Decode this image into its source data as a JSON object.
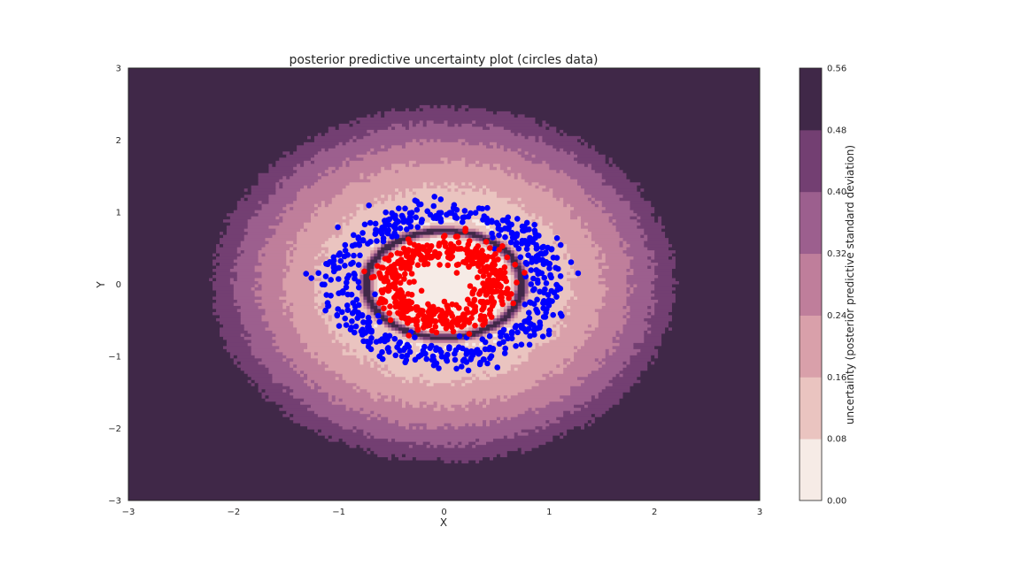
{
  "chart_data": {
    "type": "contour_scatter",
    "title": "posterior predictive uncertainty plot (circles data)",
    "xlabel": "X",
    "ylabel": "Y",
    "xlim": [
      -3,
      3
    ],
    "ylim": [
      -3,
      3
    ],
    "x_ticks": [
      "−3",
      "−2",
      "−1",
      "0",
      "1",
      "2",
      "3"
    ],
    "y_ticks": [
      "−3",
      "−2",
      "−1",
      "0",
      "1",
      "2",
      "3"
    ],
    "grid": false,
    "colorbar": {
      "label": "uncertainty (posterior predictive standard deviation)",
      "levels": [
        0.0,
        0.08,
        0.16,
        0.24,
        0.32,
        0.4,
        0.48,
        0.56
      ],
      "tick_labels": [
        "0.00",
        "0.08",
        "0.16",
        "0.24",
        "0.32",
        "0.40",
        "0.48",
        "0.56"
      ],
      "colors": [
        "#f6ebe6",
        "#eac4c0",
        "#d9a0aa",
        "#bf7e9b",
        "#9c5f8e",
        "#733f72",
        "#402848"
      ]
    },
    "series": [
      {
        "color": "#0000ff",
        "shape": "ring",
        "radius": 1.0,
        "radius_spread": 0.1,
        "approx_count": 500
      },
      {
        "color": "#ff0000",
        "shape": "ring",
        "radius": 0.5,
        "radius_spread": 0.1,
        "approx_count": 500
      }
    ]
  }
}
